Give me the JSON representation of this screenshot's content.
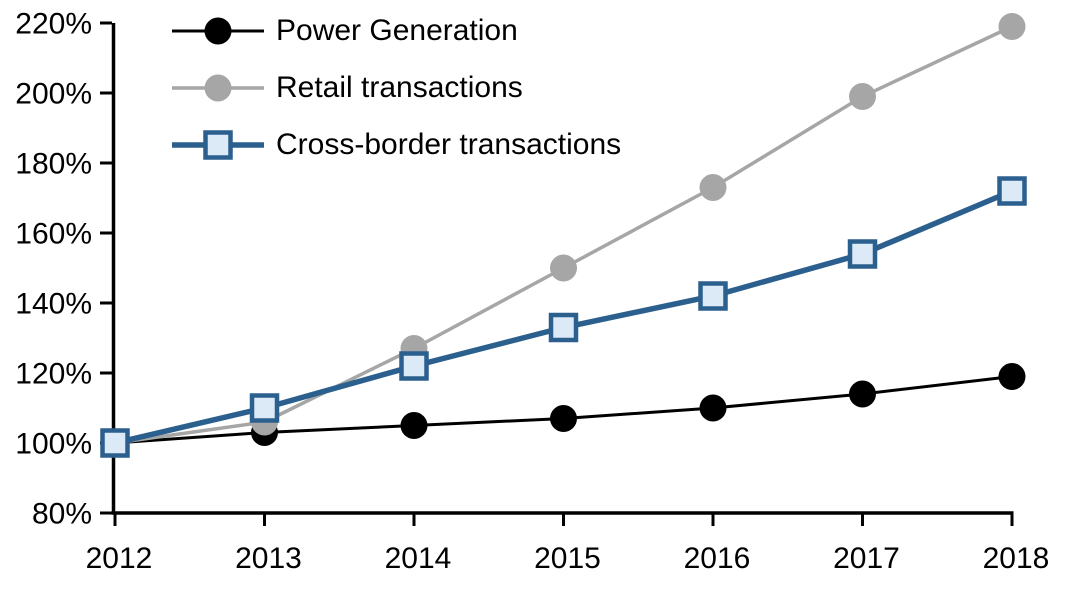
{
  "chart_data": {
    "type": "line",
    "title": "",
    "xlabel": "",
    "ylabel": "",
    "grid": false,
    "legend_position": "top-left",
    "categories": [
      "2012",
      "2013",
      "2014",
      "2015",
      "2016",
      "2017",
      "2018"
    ],
    "y_axis": {
      "min": 80,
      "max": 220,
      "step": 20,
      "tick_labels_top_to_bottom": [
        "220%",
        "200%",
        "180%",
        "160%",
        "140%",
        "120%",
        "100%",
        "80%"
      ]
    },
    "series": [
      {
        "name": "Power Generation",
        "values": [
          100,
          103,
          105,
          107,
          110,
          114,
          119
        ],
        "color": "#000000",
        "marker": "circle",
        "marker_fill": "#000000",
        "line_width": 3
      },
      {
        "name": "Retail transactions",
        "values": [
          100,
          106,
          127,
          150,
          173,
          199,
          219
        ],
        "color": "#a6a6a6",
        "marker": "circle",
        "marker_fill": "#a6a6a6",
        "line_width": 3.5
      },
      {
        "name": "Cross-border transactions",
        "values": [
          100,
          110,
          122,
          133,
          142,
          154,
          172
        ],
        "color": "#2b5f8d",
        "marker": "square",
        "marker_fill": "#dce9f6",
        "line_width": 5.5
      }
    ]
  },
  "colors": {
    "background": "#ffffff",
    "axis": "#000000",
    "tick_text": "#000000"
  }
}
